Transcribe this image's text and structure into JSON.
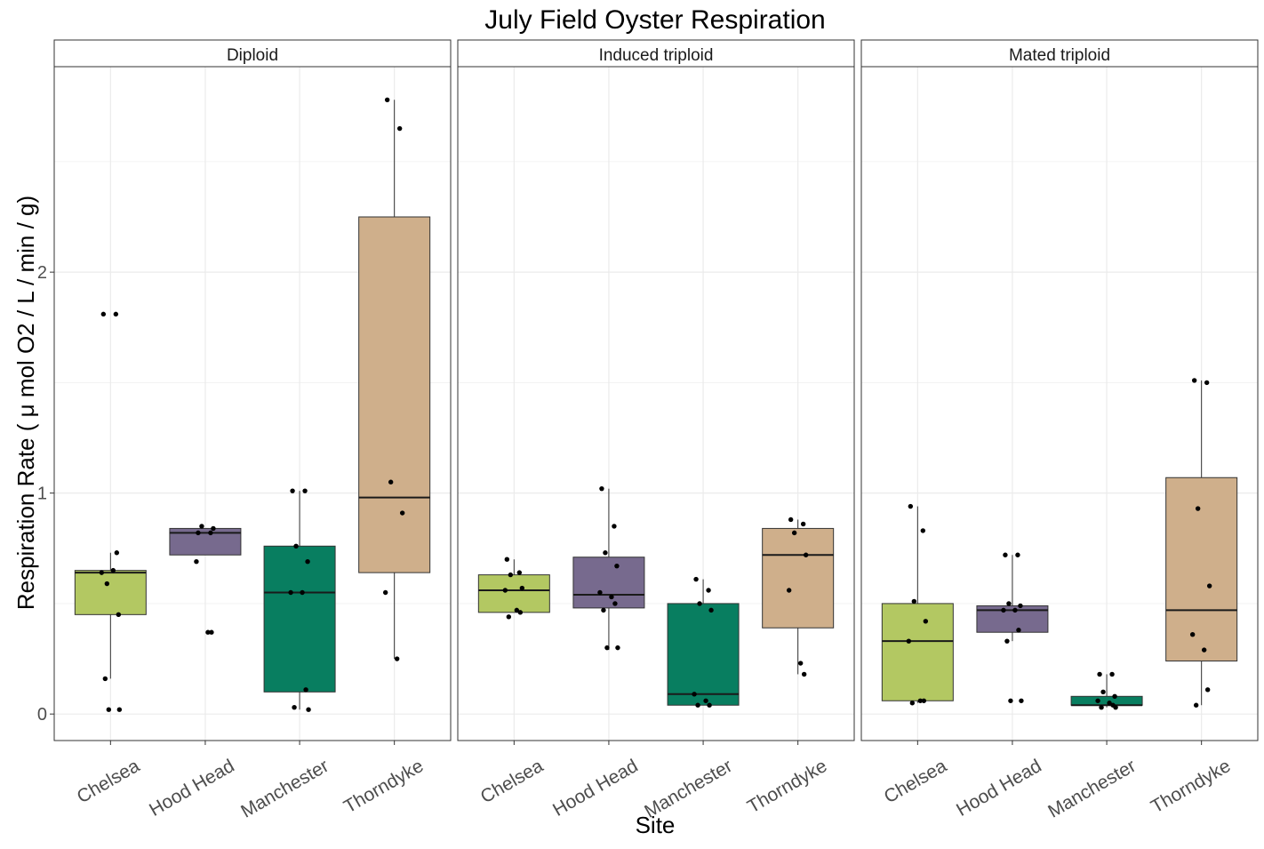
{
  "chart_data": {
    "type": "boxplot",
    "title": "July Field Oyster Respiration",
    "xlabel": "Site",
    "ylabel": "Respiration Rate ( μ mol O2 / L / min / g)",
    "ylim": [
      -0.12,
      2.93
    ],
    "yticks": [
      0,
      1,
      2
    ],
    "categories": [
      "Chelsea",
      "Hood Head",
      "Manchester",
      "Thorndyke"
    ],
    "colors": {
      "Chelsea": "#B3C862",
      "Hood Head": "#776A8E",
      "Manchester": "#087E60",
      "Thorndyke": "#CFAF8B"
    },
    "grid": true,
    "panels": [
      {
        "label": "Diploid",
        "groups": [
          {
            "site": "Chelsea",
            "lower_whisker": 0.16,
            "q1": 0.45,
            "median": 0.64,
            "q3": 0.65,
            "upper_whisker": 0.73,
            "points": [
              1.81,
              1.81,
              0.59,
              0.45,
              0.64,
              0.65,
              0.73,
              0.16,
              0.02,
              0.02
            ]
          },
          {
            "site": "Hood Head",
            "lower_whisker": 0.72,
            "q1": 0.72,
            "median": 0.82,
            "q3": 0.84,
            "upper_whisker": 0.84,
            "points": [
              0.82,
              0.82,
              0.85,
              0.84,
              0.69,
              0.37,
              0.37
            ]
          },
          {
            "site": "Manchester",
            "lower_whisker": 0.02,
            "q1": 0.1,
            "median": 0.55,
            "q3": 0.76,
            "upper_whisker": 1.01,
            "points": [
              1.01,
              1.01,
              0.76,
              0.69,
              0.55,
              0.55,
              0.11,
              0.03,
              0.02
            ]
          },
          {
            "site": "Thorndyke",
            "lower_whisker": 0.25,
            "q1": 0.64,
            "median": 0.98,
            "q3": 2.25,
            "upper_whisker": 2.78,
            "points": [
              2.78,
              2.65,
              1.05,
              0.91,
              0.55,
              0.25
            ]
          }
        ]
      },
      {
        "label": "Induced triploid",
        "groups": [
          {
            "site": "Chelsea",
            "lower_whisker": 0.46,
            "q1": 0.46,
            "median": 0.56,
            "q3": 0.63,
            "upper_whisker": 0.7,
            "points": [
              0.7,
              0.64,
              0.63,
              0.57,
              0.56,
              0.47,
              0.46,
              0.44
            ]
          },
          {
            "site": "Hood Head",
            "lower_whisker": 0.29,
            "q1": 0.48,
            "median": 0.54,
            "q3": 0.71,
            "upper_whisker": 1.02,
            "points": [
              1.02,
              0.85,
              0.73,
              0.67,
              0.55,
              0.53,
              0.5,
              0.47,
              0.3,
              0.3
            ]
          },
          {
            "site": "Manchester",
            "lower_whisker": 0.04,
            "q1": 0.04,
            "median": 0.09,
            "q3": 0.5,
            "upper_whisker": 0.61,
            "points": [
              0.61,
              0.56,
              0.5,
              0.47,
              0.09,
              0.06,
              0.04,
              0.04
            ]
          },
          {
            "site": "Thorndyke",
            "lower_whisker": 0.18,
            "q1": 0.39,
            "median": 0.72,
            "q3": 0.84,
            "upper_whisker": 0.88,
            "points": [
              0.88,
              0.86,
              0.82,
              0.72,
              0.56,
              0.23,
              0.18
            ]
          }
        ]
      },
      {
        "label": "Mated triploid",
        "groups": [
          {
            "site": "Chelsea",
            "lower_whisker": 0.05,
            "q1": 0.06,
            "median": 0.33,
            "q3": 0.5,
            "upper_whisker": 0.94,
            "points": [
              0.94,
              0.83,
              0.51,
              0.42,
              0.33,
              0.06,
              0.06,
              0.05
            ]
          },
          {
            "site": "Hood Head",
            "lower_whisker": 0.33,
            "q1": 0.37,
            "median": 0.47,
            "q3": 0.49,
            "upper_whisker": 0.72,
            "points": [
              0.72,
              0.72,
              0.5,
              0.49,
              0.47,
              0.47,
              0.38,
              0.33,
              0.06,
              0.06
            ]
          },
          {
            "site": "Manchester",
            "lower_whisker": 0.03,
            "q1": 0.04,
            "median": 0.04,
            "q3": 0.08,
            "upper_whisker": 0.18,
            "points": [
              0.18,
              0.18,
              0.1,
              0.08,
              0.06,
              0.05,
              0.04,
              0.03,
              0.03
            ]
          },
          {
            "site": "Thorndyke",
            "lower_whisker": 0.04,
            "q1": 0.24,
            "median": 0.47,
            "q3": 1.07,
            "upper_whisker": 1.51,
            "points": [
              1.51,
              1.5,
              0.93,
              0.58,
              0.36,
              0.29,
              0.11,
              0.04
            ]
          }
        ]
      }
    ]
  }
}
